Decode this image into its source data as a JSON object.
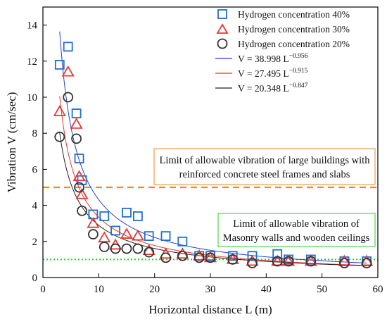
{
  "chart_data": {
    "type": "scatter",
    "xlabel": "Horizontal distance L (m)",
    "ylabel": "Vibration V (cm/sec)",
    "xlim": [
      0,
      60
    ],
    "ylim": [
      0,
      15
    ],
    "xticks": [
      0,
      10,
      20,
      30,
      40,
      50,
      60
    ],
    "yticks": [
      0,
      2,
      4,
      6,
      8,
      10,
      12,
      14
    ],
    "grid": false,
    "legend_position": "top-right",
    "series": [
      {
        "name": "Hydrogen concentration 40%",
        "marker": "square",
        "color": "#1f6fd1",
        "x": [
          3,
          4.5,
          6,
          6.5,
          7,
          9,
          11,
          13,
          15,
          17,
          19,
          22,
          25,
          28,
          30,
          34,
          37.5,
          42,
          44,
          48,
          54,
          58
        ],
        "y": [
          11.8,
          12.8,
          9.1,
          6.6,
          5.4,
          3.5,
          3.4,
          2.6,
          3.6,
          3.4,
          2.3,
          2.3,
          2.0,
          1.2,
          1.2,
          1.2,
          1.2,
          1.3,
          1.0,
          1.0,
          0.9,
          0.9
        ]
      },
      {
        "name": "Hydrogen concentration 30%",
        "marker": "triangle",
        "color": "#e53935",
        "x": [
          3,
          4.5,
          6,
          6.5,
          7,
          9,
          11,
          13,
          15,
          17,
          19,
          22,
          25,
          28,
          30,
          34,
          37.5,
          42,
          44,
          48,
          54,
          58
        ],
        "y": [
          9.2,
          11.4,
          8.5,
          5.6,
          4.6,
          3.0,
          2.2,
          1.8,
          2.4,
          2.3,
          1.5,
          1.3,
          1.3,
          1.2,
          1.1,
          1.0,
          0.9,
          0.9,
          0.9,
          0.9,
          0.9,
          0.9
        ]
      },
      {
        "name": "Hydrogen concentration 20%",
        "marker": "circle",
        "color": "#333333",
        "x": [
          3,
          4.5,
          6,
          6.5,
          7,
          9,
          11,
          13,
          15,
          17,
          19,
          22,
          25,
          28,
          30,
          34,
          37.5,
          42,
          44,
          48,
          54,
          58
        ],
        "y": [
          7.8,
          10.0,
          7.7,
          5.0,
          3.7,
          2.4,
          1.7,
          1.6,
          1.6,
          1.6,
          1.4,
          1.1,
          1.2,
          1.1,
          1.1,
          1.0,
          0.8,
          0.9,
          0.9,
          0.9,
          0.8,
          0.8
        ]
      }
    ],
    "fits": [
      {
        "label_main": "V = 38.998 L",
        "exponent": "−0.956",
        "a": 38.998,
        "b": -0.956,
        "color": "#2a3cd8"
      },
      {
        "label_main": "V = 27.495 L",
        "exponent": "−0.915",
        "a": 27.495,
        "b": -0.915,
        "color": "#e53935"
      },
      {
        "label_main": "V = 20.348 L",
        "exponent": "−0.847",
        "a": 20.348,
        "b": -0.847,
        "color": "#222222"
      }
    ],
    "fit_x_range": [
      3,
      58
    ],
    "reference_lines": [
      {
        "y": 5,
        "color": "#ef8a1c",
        "style": "dashed"
      },
      {
        "y": 1,
        "color": "#2ecc2e",
        "style": "dotted"
      }
    ],
    "annotations": [
      {
        "lines": [
          "Limit of allowable vibration of large buildings with",
          "reinforced concrete steel frames and slabs"
        ],
        "border": "#ef8a1c"
      },
      {
        "lines": [
          "Limit of allowable vibration of",
          "Masonry walls and wooden ceilings"
        ],
        "border": "#2ecc2e"
      }
    ]
  }
}
